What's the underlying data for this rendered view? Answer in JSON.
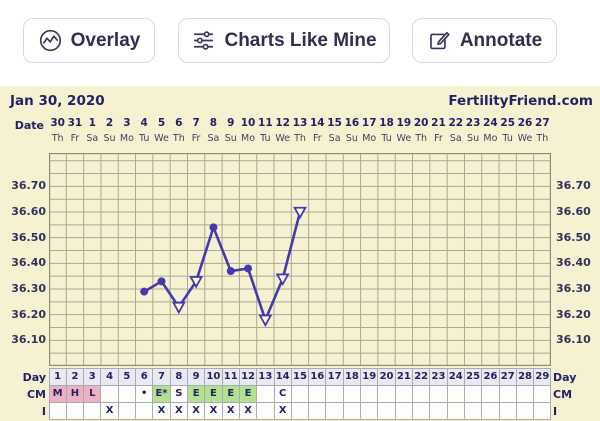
{
  "toolbar": {
    "buttons": [
      {
        "id": "overlay",
        "label": "Overlay",
        "icon": "overlay-chart-icon"
      },
      {
        "id": "charts_like_mine",
        "label": "Charts Like Mine",
        "icon": "sliders-icon"
      },
      {
        "id": "annotate",
        "label": "Annotate",
        "icon": "edit-pencil-icon"
      }
    ]
  },
  "header": {
    "title_date": "Jan 30, 2020",
    "brand": "FertilityFriend.com",
    "date_axis_label": "Date"
  },
  "chart_data": {
    "type": "line",
    "title": "Jan 30, 2020",
    "brand": "FertilityFriend.com",
    "x_axis": {
      "label": "Date",
      "dates": [
        "30",
        "31",
        "1",
        "2",
        "3",
        "4",
        "5",
        "6",
        "7",
        "8",
        "9",
        "10",
        "11",
        "12",
        "13",
        "14",
        "15",
        "16",
        "17",
        "18",
        "19",
        "20",
        "21",
        "22",
        "23",
        "24",
        "25",
        "26",
        "27"
      ],
      "weekdays": [
        "Th",
        "Fr",
        "Sa",
        "Su",
        "Mo",
        "Tu",
        "We",
        "Th",
        "Fr",
        "Sa",
        "Su",
        "Mo",
        "Tu",
        "We",
        "Th",
        "Fr",
        "Sa",
        "Su",
        "Mo",
        "Tu",
        "We",
        "Th",
        "Fr",
        "Sa",
        "Su",
        "Mo",
        "Tu",
        "We",
        "Th"
      ],
      "visible_columns": 29
    },
    "y_axis": {
      "unit": "celsius",
      "tick_labels": [
        "36.70",
        "36.60",
        "36.50",
        "36.40",
        "36.30",
        "36.20",
        "36.10"
      ],
      "tick_values": [
        36.7,
        36.6,
        36.5,
        36.4,
        36.3,
        36.2,
        36.1
      ],
      "gridline_step": 0.05,
      "range": [
        36.0,
        36.83
      ],
      "labels_both_sides": true,
      "grid": "on"
    },
    "series": [
      {
        "name": "basal-body-temperature",
        "color": "#4539ad",
        "points": [
          {
            "cycle_day": 6,
            "temp": 36.29,
            "marker": "filled-circle"
          },
          {
            "cycle_day": 7,
            "temp": 36.33,
            "marker": "filled-circle"
          },
          {
            "cycle_day": 8,
            "temp": 36.23,
            "marker": "open-triangle"
          },
          {
            "cycle_day": 9,
            "temp": 36.33,
            "marker": "open-triangle"
          },
          {
            "cycle_day": 10,
            "temp": 36.54,
            "marker": "filled-circle"
          },
          {
            "cycle_day": 11,
            "temp": 36.37,
            "marker": "filled-circle"
          },
          {
            "cycle_day": 12,
            "temp": 36.38,
            "marker": "filled-circle"
          },
          {
            "cycle_day": 13,
            "temp": 36.18,
            "marker": "open-triangle"
          },
          {
            "cycle_day": 14,
            "temp": 36.34,
            "marker": "open-triangle"
          },
          {
            "cycle_day": 15,
            "temp": 36.6,
            "marker": "open-triangle"
          }
        ]
      }
    ],
    "bottom_rows": {
      "day": {
        "left_label": "Day",
        "right_label": "Day",
        "values": [
          "1",
          "2",
          "3",
          "4",
          "5",
          "6",
          "7",
          "8",
          "9",
          "10",
          "11",
          "12",
          "13",
          "14",
          "15",
          "16",
          "17",
          "18",
          "19",
          "20",
          "21",
          "22",
          "23",
          "24",
          "25",
          "26",
          "27",
          "28",
          "29"
        ]
      },
      "cm": {
        "left_label": "CM",
        "right_label": "CM",
        "entries": [
          {
            "day": 1,
            "text": "M",
            "bg": "pink"
          },
          {
            "day": 2,
            "text": "H",
            "bg": "pink"
          },
          {
            "day": 3,
            "text": "L",
            "bg": "pink"
          },
          {
            "day": 6,
            "text": "•",
            "bg": "plain"
          },
          {
            "day": 7,
            "text": "E*",
            "bg": "green"
          },
          {
            "day": 8,
            "text": "S",
            "bg": "plain"
          },
          {
            "day": 9,
            "text": "E",
            "bg": "green"
          },
          {
            "day": 10,
            "text": "E",
            "bg": "green"
          },
          {
            "day": 11,
            "text": "E",
            "bg": "green"
          },
          {
            "day": 12,
            "text": "E",
            "bg": "green"
          },
          {
            "day": 14,
            "text": "C",
            "bg": "plain"
          }
        ]
      },
      "intercourse": {
        "left_label": "I",
        "right_label": "I",
        "mark": "X",
        "marked_days": [
          4,
          7,
          8,
          9,
          10,
          11,
          12,
          14
        ]
      }
    },
    "colors": {
      "line": "#4539ad",
      "chart_background": "#f6f2d1",
      "gridline": "#a8a893",
      "grid_border": "#8c8c7c",
      "navy_text": "#232264",
      "menses_pink": "#ecb2c1",
      "fertile_green": "#b2e291",
      "day_cell_bg": "#e9e9f1"
    }
  }
}
